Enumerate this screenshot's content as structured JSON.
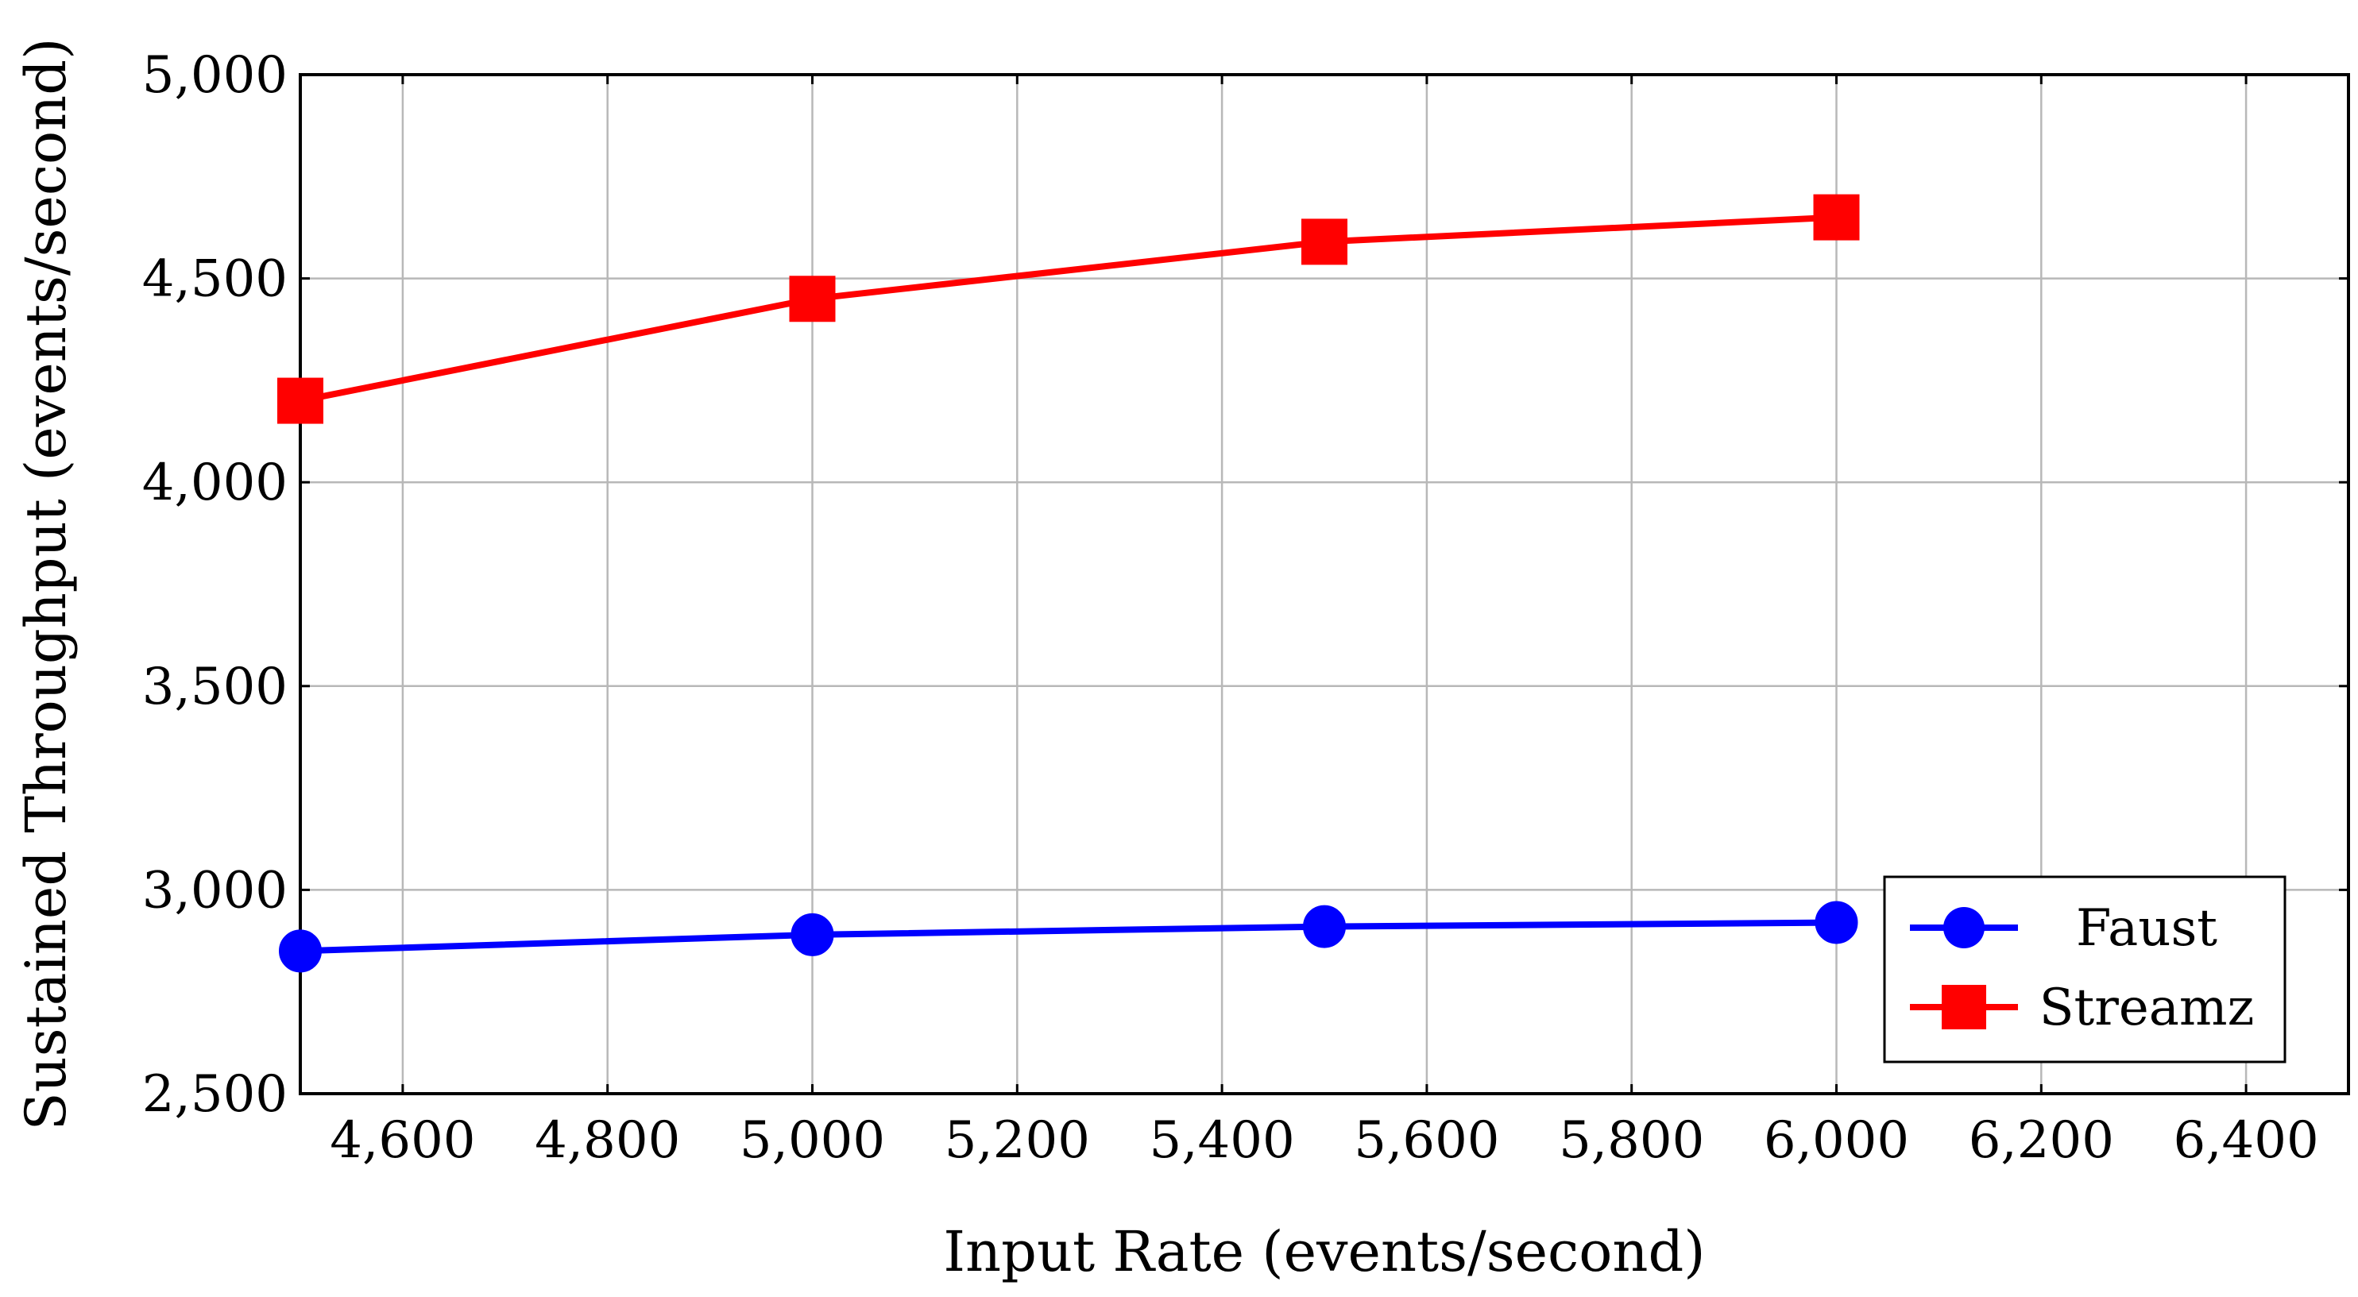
{
  "chart_data": {
    "type": "line",
    "title": "",
    "xlabel": "Input Rate (events/second)",
    "ylabel": "Sustained Throughput (events/second)",
    "xlim": [
      4500,
      6500
    ],
    "ylim": [
      2500,
      5000
    ],
    "xticks": [
      4600,
      4800,
      5000,
      5200,
      5400,
      5600,
      5800,
      6000,
      6200,
      6400
    ],
    "yticks": [
      2500,
      3000,
      3500,
      4000,
      4500,
      5000
    ],
    "xtick_labels": [
      "4,600",
      "4,800",
      "5,000",
      "5,200",
      "5,400",
      "5,600",
      "5,800",
      "6,000",
      "6,200",
      "6,400"
    ],
    "ytick_labels": [
      "2,500",
      "3,000",
      "3,500",
      "4,000",
      "4,500",
      "5,000"
    ],
    "grid": true,
    "legend_position": "bottom-right",
    "x": [
      4500,
      5000,
      5500,
      6000
    ],
    "series": [
      {
        "name": "Faust",
        "values": [
          2850,
          2890,
          2910,
          2920
        ],
        "color": "#0000ff",
        "marker": "circle"
      },
      {
        "name": "Streamz",
        "values": [
          4200,
          4450,
          4590,
          4650
        ],
        "color": "#ff0000",
        "marker": "square"
      }
    ]
  }
}
